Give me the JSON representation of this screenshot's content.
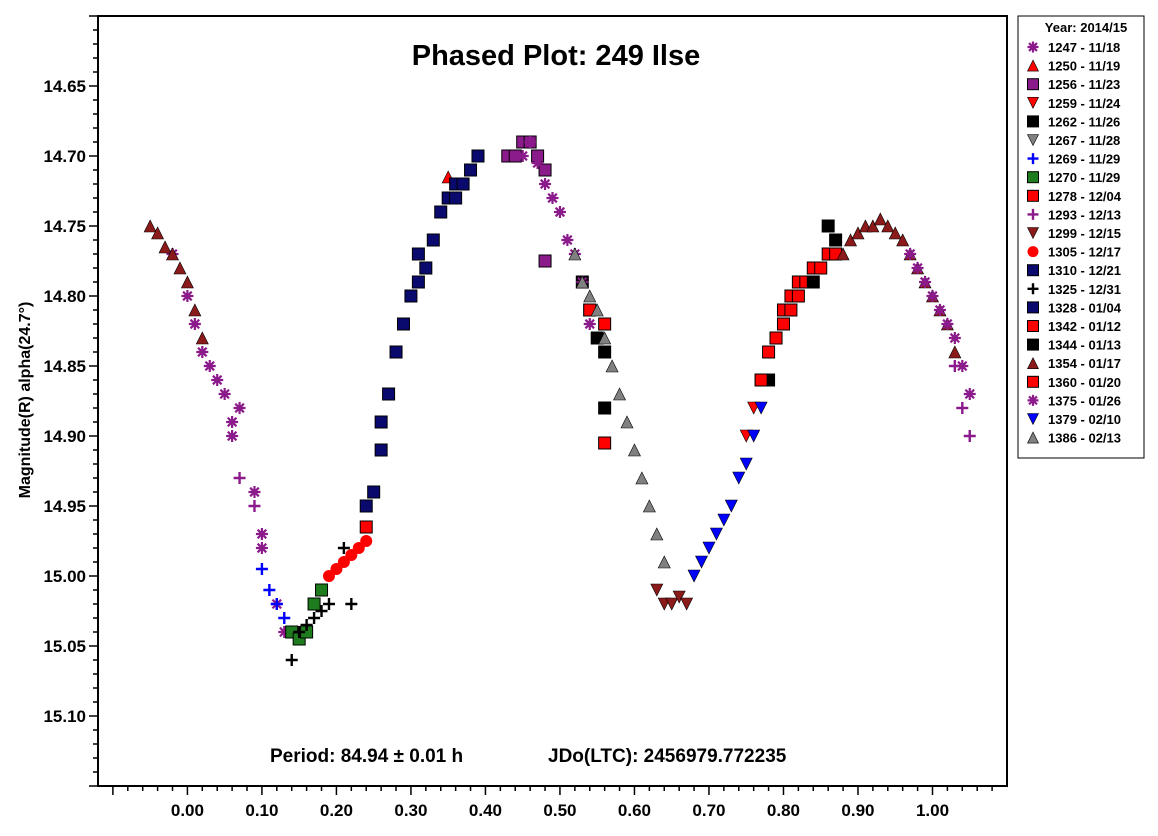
{
  "chart_data": {
    "type": "scatter",
    "title": "Phased Plot: 249 Ilse",
    "xlabel": "",
    "ylabel": "Magnitude(R) alpha(24.7°)",
    "xlim": [
      -0.12,
      1.1
    ],
    "ylim": [
      15.15,
      14.6
    ],
    "y_inverted": true,
    "x_ticks": [
      "0.00",
      "0.10",
      "0.20",
      "0.30",
      "0.40",
      "0.50",
      "0.60",
      "0.70",
      "0.80",
      "0.90",
      "1.00"
    ],
    "x_tick_values": [
      0,
      0.1,
      0.2,
      0.3,
      0.4,
      0.5,
      0.6,
      0.7,
      0.8,
      0.9,
      1.0
    ],
    "y_ticks": [
      "14.65",
      "14.70",
      "14.75",
      "14.80",
      "14.85",
      "14.90",
      "14.95",
      "15.00",
      "15.05",
      "15.10"
    ],
    "y_tick_values": [
      14.65,
      14.7,
      14.75,
      14.8,
      14.85,
      14.9,
      14.95,
      15.0,
      15.05,
      15.1
    ],
    "grid": false,
    "legend_position": "right",
    "legend_title": "Year: 2014/15",
    "annotation_period": "Period: 84.94 ± 0.01 h",
    "annotation_epoch": "JDo(LTC): 2456979.772235",
    "series": [
      {
        "name": "1247 - 11/18",
        "marker": "asterisk",
        "color": "#8B1A8B",
        "x": [
          -0.02,
          0.0,
          0.01,
          0.02,
          0.03,
          0.04,
          0.05,
          0.06,
          0.06,
          0.07,
          0.09,
          0.1,
          0.1,
          0.12,
          0.13
        ],
        "y": [
          14.77,
          14.8,
          14.82,
          14.84,
          14.85,
          14.86,
          14.87,
          14.89,
          14.9,
          14.88,
          14.94,
          14.97,
          14.98,
          15.02,
          15.04
        ]
      },
      {
        "name": "1250 - 11/19",
        "marker": "triangle-up",
        "color": "#FF0000",
        "x": [
          0.35
        ],
        "y": [
          14.715
        ]
      },
      {
        "name": "1256 - 11/23",
        "marker": "square",
        "color": "#8B1A8B",
        "x": [
          0.43,
          0.44,
          0.45,
          0.46,
          0.47,
          0.48,
          0.48
        ],
        "y": [
          14.7,
          14.7,
          14.69,
          14.69,
          14.7,
          14.71,
          14.775
        ]
      },
      {
        "name": "1259 - 11/24",
        "marker": "triangle-down",
        "color": "#FF0000",
        "x": [
          0.75,
          0.76,
          0.77
        ],
        "y": [
          14.9,
          14.88,
          14.86
        ]
      },
      {
        "name": "1262 - 11/26",
        "marker": "square",
        "color": "#000000",
        "x": [
          0.53,
          0.54,
          0.55,
          0.56,
          0.56
        ],
        "y": [
          14.79,
          14.81,
          14.83,
          14.84,
          14.88
        ]
      },
      {
        "name": "1267 - 11/28",
        "marker": "triangle-down",
        "color": "#808080",
        "x": [
          0.82,
          0.84,
          0.86
        ],
        "y": [
          14.79,
          14.78,
          14.77
        ]
      },
      {
        "name": "1269 - 11/29",
        "marker": "plus",
        "color": "#0000FF",
        "x": [
          0.1,
          0.11,
          0.12,
          0.13
        ],
        "y": [
          14.995,
          15.01,
          15.02,
          15.03
        ]
      },
      {
        "name": "1270 - 11/29",
        "marker": "square",
        "color": "#1E7B1E",
        "x": [
          0.14,
          0.15,
          0.16,
          0.17,
          0.18
        ],
        "y": [
          15.04,
          15.045,
          15.04,
          15.02,
          15.01
        ]
      },
      {
        "name": "1278 - 12/04",
        "marker": "square",
        "color": "#FF0000",
        "x": [
          0.24,
          0.54,
          0.56,
          0.56
        ],
        "y": [
          14.965,
          14.81,
          14.82,
          14.905
        ]
      },
      {
        "name": "1293 - 12/13",
        "marker": "plus",
        "color": "#8B1A8B",
        "x": [
          0.07,
          0.09,
          1.03,
          1.04,
          1.05
        ],
        "y": [
          14.93,
          14.95,
          14.85,
          14.88,
          14.9
        ]
      },
      {
        "name": "1299 - 12/15",
        "marker": "triangle-down",
        "color": "#8B1A1A",
        "x": [
          0.63,
          0.64,
          0.65,
          0.66,
          0.67
        ],
        "y": [
          15.01,
          15.02,
          15.02,
          15.015,
          15.02
        ]
      },
      {
        "name": "1305 - 12/17",
        "marker": "circle",
        "color": "#FF0000",
        "x": [
          0.19,
          0.2,
          0.21,
          0.22,
          0.23,
          0.24
        ],
        "y": [
          15.0,
          14.995,
          14.99,
          14.985,
          14.98,
          14.975
        ]
      },
      {
        "name": "1310 - 12/21",
        "marker": "square",
        "color": "#0A0A6E",
        "x": [
          0.26,
          0.27,
          0.28,
          0.29,
          0.3,
          0.31,
          0.32,
          0.33,
          0.34,
          0.35,
          0.36
        ],
        "y": [
          14.89,
          14.87,
          14.84,
          14.82,
          14.8,
          14.79,
          14.78,
          14.76,
          14.74,
          14.73,
          14.72
        ]
      },
      {
        "name": "1325 - 12/31",
        "marker": "plus",
        "color": "#000000",
        "x": [
          0.14,
          0.15,
          0.16,
          0.17,
          0.18,
          0.19,
          0.21,
          0.22
        ],
        "y": [
          15.06,
          15.04,
          15.035,
          15.03,
          15.025,
          15.02,
          14.98,
          15.02
        ]
      },
      {
        "name": "1328 - 01/04",
        "marker": "square",
        "color": "#0A0A6E",
        "x": [
          0.24,
          0.25,
          0.26,
          0.31,
          0.36,
          0.37,
          0.38,
          0.39
        ],
        "y": [
          14.95,
          14.94,
          14.91,
          14.77,
          14.73,
          14.72,
          14.71,
          14.7
        ]
      },
      {
        "name": "1342 - 01/12",
        "marker": "square",
        "color": "#FF0000",
        "x": [
          0.79,
          0.8,
          0.81,
          0.82,
          0.83,
          0.84,
          0.85,
          0.86,
          0.87
        ],
        "y": [
          14.83,
          14.81,
          14.8,
          14.79,
          14.79,
          14.78,
          14.78,
          14.77,
          14.77
        ]
      },
      {
        "name": "1344 - 01/13",
        "marker": "square",
        "color": "#000000",
        "x": [
          0.77,
          0.78,
          0.84,
          0.86,
          0.87
        ],
        "y": [
          14.86,
          14.86,
          14.79,
          14.75,
          14.76
        ]
      },
      {
        "name": "1354 - 01/17",
        "marker": "triangle-up",
        "color": "#8B1A1A",
        "x": [
          -0.05,
          -0.04,
          -0.03,
          -0.02,
          -0.01,
          0.0,
          0.01,
          0.02,
          0.88,
          0.89,
          0.9,
          0.91,
          0.92,
          0.93,
          0.94,
          0.95,
          0.96,
          0.97,
          0.98,
          0.99,
          1.0,
          1.01,
          1.02,
          1.03
        ],
        "y": [
          14.75,
          14.755,
          14.765,
          14.77,
          14.78,
          14.79,
          14.81,
          14.83,
          14.77,
          14.76,
          14.755,
          14.75,
          14.75,
          14.745,
          14.75,
          14.755,
          14.76,
          14.77,
          14.78,
          14.79,
          14.8,
          14.81,
          14.82,
          14.84
        ]
      },
      {
        "name": "1360 - 01/20",
        "marker": "square",
        "color": "#FF0000",
        "x": [
          0.77,
          0.78,
          0.79,
          0.8,
          0.81,
          0.82
        ],
        "y": [
          14.86,
          14.84,
          14.83,
          14.82,
          14.81,
          14.8
        ]
      },
      {
        "name": "1375 - 01/26",
        "marker": "asterisk",
        "color": "#8B1A8B",
        "x": [
          0.45,
          0.46,
          0.47,
          0.48,
          0.49,
          0.5,
          0.51,
          0.52,
          0.53,
          0.54,
          0.97,
          0.98,
          0.99,
          1.0,
          1.01,
          1.02,
          1.03,
          1.04,
          1.05
        ],
        "y": [
          14.7,
          14.69,
          14.705,
          14.72,
          14.73,
          14.74,
          14.76,
          14.77,
          14.79,
          14.82,
          14.77,
          14.78,
          14.79,
          14.8,
          14.81,
          14.82,
          14.83,
          14.85,
          14.87
        ]
      },
      {
        "name": "1379 - 02/10",
        "marker": "triangle-down",
        "color": "#0000FF",
        "x": [
          0.68,
          0.69,
          0.7,
          0.71,
          0.72,
          0.73,
          0.74,
          0.75,
          0.76,
          0.77
        ],
        "y": [
          15.0,
          14.99,
          14.98,
          14.97,
          14.96,
          14.95,
          14.93,
          14.92,
          14.9,
          14.88
        ]
      },
      {
        "name": "1386 - 02/13",
        "marker": "triangle-up",
        "color": "#808080",
        "x": [
          0.52,
          0.53,
          0.54,
          0.55,
          0.56,
          0.57,
          0.58,
          0.59,
          0.6,
          0.61,
          0.62,
          0.63,
          0.64
        ],
        "y": [
          14.77,
          14.79,
          14.8,
          14.81,
          14.83,
          14.85,
          14.87,
          14.89,
          14.91,
          14.93,
          14.95,
          14.97,
          14.99
        ]
      }
    ]
  }
}
